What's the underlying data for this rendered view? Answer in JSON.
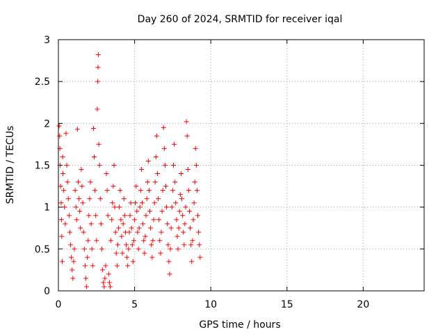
{
  "chart_data": {
    "type": "scatter",
    "title": "Day 260 of 2024, SRMTID for receiver iqal",
    "xlabel": "GPS time / hours",
    "ylabel": "SRMTID / TECUs",
    "xlim": [
      0,
      24
    ],
    "ylim": [
      0,
      3
    ],
    "xticks": [
      0,
      5,
      10,
      15,
      20
    ],
    "yticks": [
      0,
      0.5,
      1,
      1.5,
      2,
      2.5,
      3
    ],
    "xtick_labels": [
      "0",
      "5",
      "10",
      "15",
      "20"
    ],
    "ytick_labels": [
      "0",
      "0.5",
      "1",
      "1.5",
      "2",
      "2.5",
      "3"
    ],
    "grid": true,
    "marker": "+",
    "colors": {
      "series": "#ff0000",
      "axes": "#000000",
      "grid": "#a0a0a0"
    },
    "series": [
      {
        "name": "SRMTID",
        "points": [
          [
            0.05,
            1.97
          ],
          [
            0.08,
            1.85
          ],
          [
            0.1,
            1.7
          ],
          [
            0.12,
            1.5
          ],
          [
            0.15,
            1.25
          ],
          [
            0.18,
            1.05
          ],
          [
            0.2,
            0.85
          ],
          [
            0.22,
            0.65
          ],
          [
            0.25,
            0.35
          ],
          [
            0.28,
            1.6
          ],
          [
            0.3,
            1.4
          ],
          [
            0.35,
            1.2
          ],
          [
            0.4,
            1.0
          ],
          [
            0.45,
            0.8
          ],
          [
            0.5,
            1.88
          ],
          [
            0.55,
            1.5
          ],
          [
            0.6,
            1.3
          ],
          [
            0.65,
            1.1
          ],
          [
            0.7,
            0.9
          ],
          [
            0.75,
            0.7
          ],
          [
            0.8,
            0.55
          ],
          [
            0.85,
            0.4
          ],
          [
            0.9,
            0.25
          ],
          [
            0.95,
            0.15
          ],
          [
            1.0,
            0.35
          ],
          [
            1.05,
            0.5
          ],
          [
            1.1,
            1.2
          ],
          [
            1.15,
            1.0
          ],
          [
            1.2,
            0.85
          ],
          [
            1.25,
            1.93
          ],
          [
            1.3,
            1.3
          ],
          [
            1.35,
            1.1
          ],
          [
            1.4,
            0.95
          ],
          [
            1.45,
            0.75
          ],
          [
            1.5,
            1.45
          ],
          [
            1.55,
            1.25
          ],
          [
            1.6,
            1.05
          ],
          [
            1.65,
            0.7
          ],
          [
            1.7,
            0.5
          ],
          [
            1.75,
            0.3
          ],
          [
            1.8,
            0.15
          ],
          [
            1.85,
            0.05
          ],
          [
            1.9,
            0.4
          ],
          [
            1.95,
            0.6
          ],
          [
            2.0,
            0.9
          ],
          [
            2.05,
            1.1
          ],
          [
            2.1,
            1.3
          ],
          [
            2.15,
            0.8
          ],
          [
            2.2,
            0.5
          ],
          [
            2.25,
            0.3
          ],
          [
            2.3,
            1.94
          ],
          [
            2.35,
            1.6
          ],
          [
            2.4,
            1.2
          ],
          [
            2.45,
            0.9
          ],
          [
            2.5,
            0.6
          ],
          [
            2.55,
            2.17
          ],
          [
            2.58,
            2.5
          ],
          [
            2.6,
            2.67
          ],
          [
            2.62,
            2.82
          ],
          [
            2.65,
            1.75
          ],
          [
            2.7,
            1.5
          ],
          [
            2.75,
            1.1
          ],
          [
            2.8,
            0.8
          ],
          [
            2.85,
            0.5
          ],
          [
            2.9,
            0.25
          ],
          [
            2.95,
            0.1
          ],
          [
            3.0,
            0.05
          ],
          [
            3.05,
            0.15
          ],
          [
            3.1,
            0.3
          ],
          [
            3.15,
            1.4
          ],
          [
            3.2,
            1.2
          ],
          [
            3.25,
            0.9
          ],
          [
            3.3,
            0.2
          ],
          [
            3.35,
            0.1
          ],
          [
            3.4,
            0.05
          ],
          [
            3.45,
            0.6
          ],
          [
            3.5,
            0.85
          ],
          [
            3.55,
            1.05
          ],
          [
            3.6,
            1.25
          ],
          [
            3.65,
            1.5
          ],
          [
            3.7,
            1.0
          ],
          [
            3.75,
            0.7
          ],
          [
            3.8,
            0.45
          ],
          [
            3.85,
            0.3
          ],
          [
            3.9,
            0.55
          ],
          [
            3.95,
            0.75
          ],
          [
            4.0,
            1.0
          ],
          [
            4.05,
            1.2
          ],
          [
            4.1,
            0.85
          ],
          [
            4.15,
            0.65
          ],
          [
            4.2,
            0.45
          ],
          [
            4.25,
            0.8
          ],
          [
            4.3,
            1.1
          ],
          [
            4.35,
            0.9
          ],
          [
            4.4,
            0.7
          ],
          [
            4.45,
            0.55
          ],
          [
            4.5,
            0.4
          ],
          [
            4.55,
            0.3
          ],
          [
            4.6,
            0.5
          ],
          [
            4.65,
            0.7
          ],
          [
            4.7,
            0.9
          ],
          [
            4.75,
            1.05
          ],
          [
            4.8,
            0.75
          ],
          [
            4.85,
            0.55
          ],
          [
            4.9,
            0.35
          ],
          [
            4.95,
            0.6
          ],
          [
            5.0,
            0.85
          ],
          [
            5.05,
            1.05
          ],
          [
            5.1,
            1.25
          ],
          [
            5.15,
            0.95
          ],
          [
            5.2,
            0.7
          ],
          [
            5.25,
            0.5
          ],
          [
            5.3,
            0.75
          ],
          [
            5.35,
            1.0
          ],
          [
            5.4,
            1.2
          ],
          [
            5.45,
            1.45
          ],
          [
            5.5,
            1.05
          ],
          [
            5.55,
            0.8
          ],
          [
            5.6,
            0.6
          ],
          [
            5.65,
            0.45
          ],
          [
            5.7,
            0.65
          ],
          [
            5.75,
            0.9
          ],
          [
            5.8,
            1.1
          ],
          [
            5.85,
            1.3
          ],
          [
            5.9,
            1.55
          ],
          [
            5.95,
            1.2
          ],
          [
            6.0,
            0.95
          ],
          [
            6.05,
            0.75
          ],
          [
            6.1,
            0.55
          ],
          [
            6.15,
            0.4
          ],
          [
            6.2,
            0.6
          ],
          [
            6.25,
            0.85
          ],
          [
            6.3,
            1.05
          ],
          [
            6.35,
            1.3
          ],
          [
            6.4,
            1.6
          ],
          [
            6.45,
            1.85
          ],
          [
            6.5,
            1.4
          ],
          [
            6.55,
            1.1
          ],
          [
            6.6,
            0.85
          ],
          [
            6.65,
            0.6
          ],
          [
            6.7,
            0.45
          ],
          [
            6.75,
            0.7
          ],
          [
            6.8,
            0.95
          ],
          [
            6.85,
            1.2
          ],
          [
            6.9,
            1.95
          ],
          [
            6.95,
            1.7
          ],
          [
            7.0,
            1.5
          ],
          [
            7.05,
            1.25
          ],
          [
            7.1,
            1.0
          ],
          [
            7.15,
            0.8
          ],
          [
            7.2,
            0.55
          ],
          [
            7.25,
            0.35
          ],
          [
            7.3,
            0.2
          ],
          [
            7.35,
            0.5
          ],
          [
            7.4,
            0.75
          ],
          [
            7.45,
            1.0
          ],
          [
            7.5,
            1.2
          ],
          [
            7.55,
            1.5
          ],
          [
            7.6,
            1.75
          ],
          [
            7.65,
            1.3
          ],
          [
            7.7,
            1.05
          ],
          [
            7.75,
            0.85
          ],
          [
            7.8,
            0.65
          ],
          [
            7.85,
            0.5
          ],
          [
            7.9,
            0.75
          ],
          [
            7.95,
            0.95
          ],
          [
            8.0,
            1.15
          ],
          [
            8.05,
            1.4
          ],
          [
            8.1,
            1.1
          ],
          [
            8.15,
            0.9
          ],
          [
            8.2,
            0.7
          ],
          [
            8.25,
            0.55
          ],
          [
            8.3,
            0.8
          ],
          [
            8.35,
            1.0
          ],
          [
            8.4,
            2.02
          ],
          [
            8.45,
            1.85
          ],
          [
            8.5,
            1.45
          ],
          [
            8.55,
            1.2
          ],
          [
            8.6,
            0.95
          ],
          [
            8.65,
            0.75
          ],
          [
            8.7,
            0.55
          ],
          [
            8.75,
            0.35
          ],
          [
            8.8,
            0.6
          ],
          [
            8.85,
            0.85
          ],
          [
            8.9,
            1.05
          ],
          [
            8.95,
            1.3
          ],
          [
            9.0,
            1.7
          ],
          [
            9.05,
            1.5
          ],
          [
            9.1,
            1.2
          ],
          [
            9.15,
            0.9
          ],
          [
            9.2,
            0.7
          ],
          [
            9.25,
            0.55
          ],
          [
            9.3,
            0.4
          ]
        ]
      }
    ]
  }
}
